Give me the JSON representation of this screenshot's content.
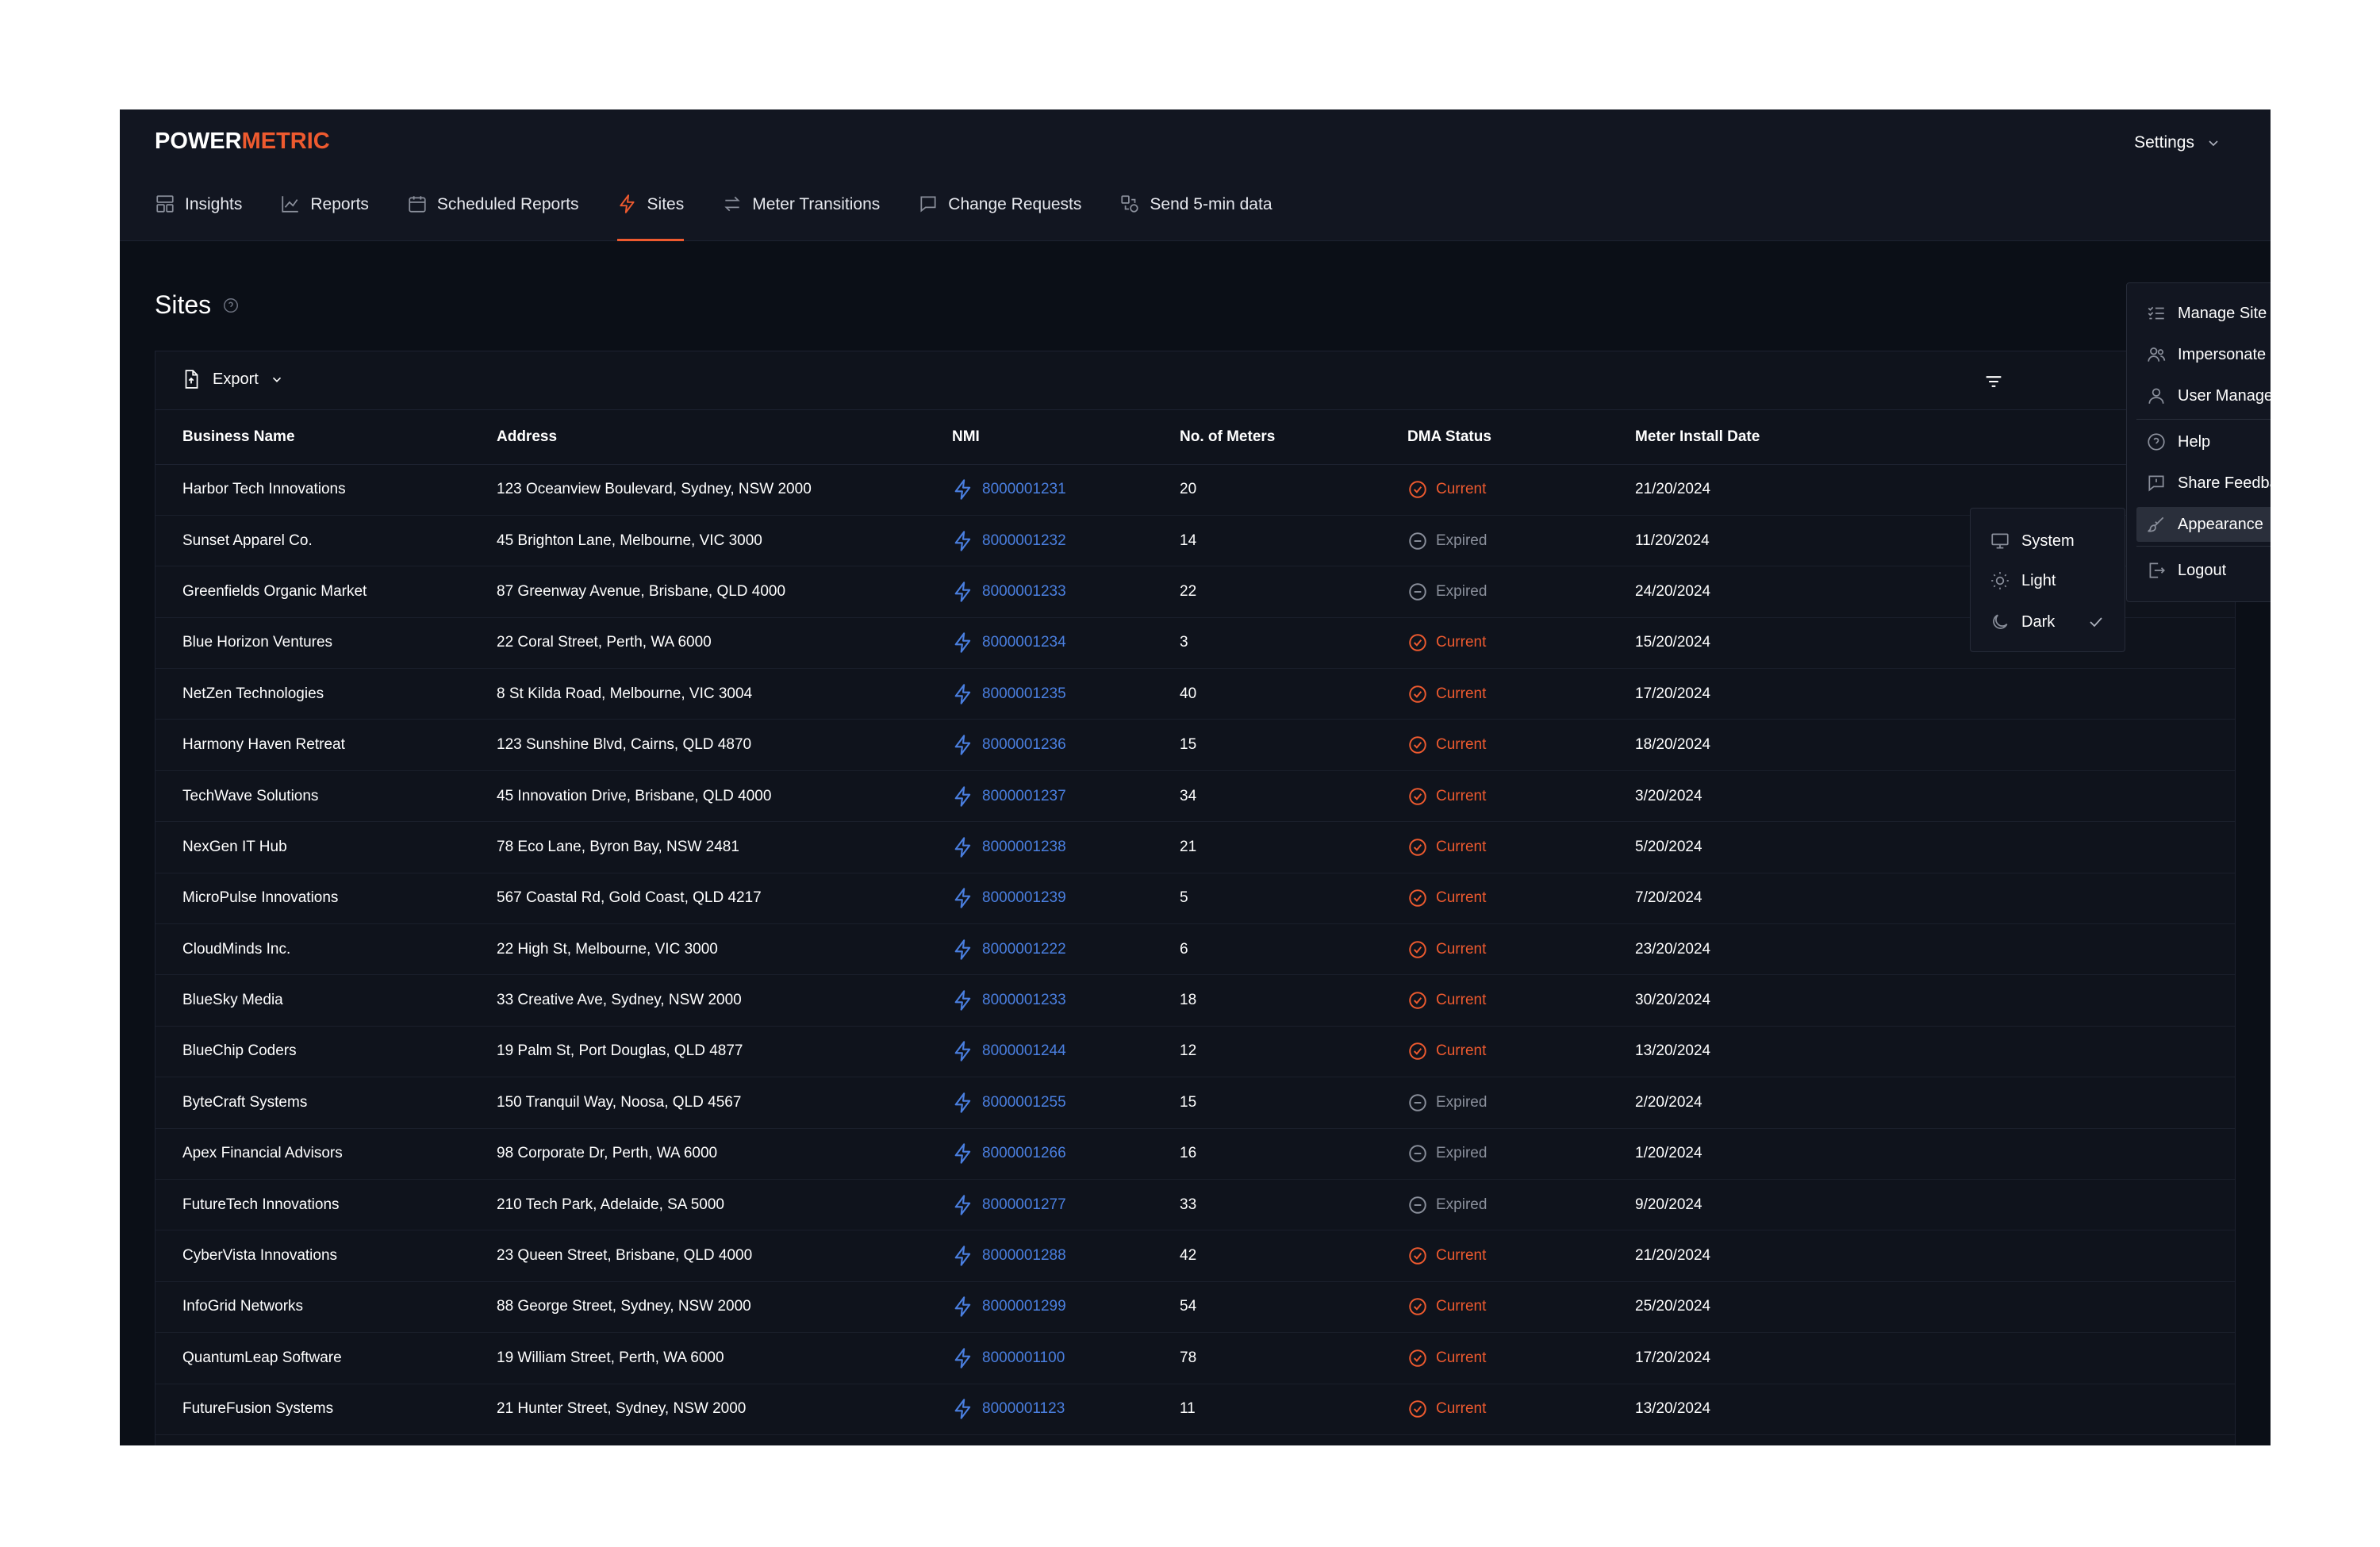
{
  "brand": {
    "part1": "POWER",
    "part2": "METRIC"
  },
  "settings": {
    "label": "Settings"
  },
  "nav": {
    "items": [
      {
        "label": "Insights",
        "icon": "layout-icon"
      },
      {
        "label": "Reports",
        "icon": "chart-line-icon"
      },
      {
        "label": "Scheduled Reports",
        "icon": "calendar-icon"
      },
      {
        "label": "Sites",
        "icon": "bolt-icon",
        "active": true
      },
      {
        "label": "Meter Transitions",
        "icon": "arrows-swap-icon"
      },
      {
        "label": "Change Requests",
        "icon": "message-icon"
      },
      {
        "label": "Send 5-min data",
        "icon": "shapes-icon"
      }
    ]
  },
  "page": {
    "title": "Sites"
  },
  "toolbar": {
    "export_label": "Export"
  },
  "table": {
    "columns": [
      "Business Name",
      "Address",
      "NMI",
      "No. of Meters",
      "DMA Status",
      "Meter Install Date"
    ],
    "rows": [
      {
        "name": "Harbor Tech Innovations",
        "address": "123 Oceanview Boulevard, Sydney, NSW 2000",
        "nmi": "8000001231",
        "meters": "20",
        "status": "Current",
        "date": "21/20/2024"
      },
      {
        "name": "Sunset Apparel Co.",
        "address": "45 Brighton Lane, Melbourne, VIC 3000",
        "nmi": "8000001232",
        "meters": "14",
        "status": "Expired",
        "date": "11/20/2024"
      },
      {
        "name": "Greenfields Organic Market",
        "address": "87 Greenway Avenue, Brisbane, QLD 4000",
        "nmi": "8000001233",
        "meters": "22",
        "status": "Expired",
        "date": "24/20/2024"
      },
      {
        "name": "Blue Horizon Ventures",
        "address": "22 Coral Street, Perth, WA 6000",
        "nmi": "8000001234",
        "meters": "3",
        "status": "Current",
        "date": "15/20/2024"
      },
      {
        "name": "NetZen Technologies",
        "address": "8 St Kilda Road, Melbourne, VIC 3004",
        "nmi": "8000001235",
        "meters": "40",
        "status": "Current",
        "date": "17/20/2024"
      },
      {
        "name": "Harmony Haven Retreat",
        "address": "123 Sunshine Blvd, Cairns, QLD 4870",
        "nmi": "8000001236",
        "meters": "15",
        "status": "Current",
        "date": "18/20/2024"
      },
      {
        "name": "TechWave Solutions",
        "address": "45 Innovation Drive, Brisbane, QLD 4000",
        "nmi": "8000001237",
        "meters": "34",
        "status": "Current",
        "date": "3/20/2024"
      },
      {
        "name": "NexGen IT Hub",
        "address": "78 Eco Lane, Byron Bay, NSW 2481",
        "nmi": "8000001238",
        "meters": "21",
        "status": "Current",
        "date": "5/20/2024"
      },
      {
        "name": "MicroPulse Innovations",
        "address": "567 Coastal Rd, Gold Coast, QLD 4217",
        "nmi": "8000001239",
        "meters": "5",
        "status": "Current",
        "date": "7/20/2024"
      },
      {
        "name": "CloudMinds Inc.",
        "address": "22 High St, Melbourne, VIC 3000",
        "nmi": "8000001222",
        "meters": "6",
        "status": "Current",
        "date": "23/20/2024"
      },
      {
        "name": "BlueSky Media",
        "address": "33 Creative Ave, Sydney, NSW 2000",
        "nmi": "8000001233",
        "meters": "18",
        "status": "Current",
        "date": "30/20/2024"
      },
      {
        "name": "BlueChip Coders",
        "address": "19 Palm St, Port Douglas, QLD 4877",
        "nmi": "8000001244",
        "meters": "12",
        "status": "Current",
        "date": "13/20/2024"
      },
      {
        "name": "ByteCraft Systems",
        "address": "150 Tranquil Way, Noosa, QLD 4567",
        "nmi": "8000001255",
        "meters": "15",
        "status": "Expired",
        "date": "2/20/2024"
      },
      {
        "name": "Apex Financial Advisors",
        "address": "98 Corporate Dr, Perth, WA 6000",
        "nmi": "8000001266",
        "meters": "16",
        "status": "Expired",
        "date": "1/20/2024"
      },
      {
        "name": "FutureTech Innovations",
        "address": "210 Tech Park, Adelaide, SA 5000",
        "nmi": "8000001277",
        "meters": "33",
        "status": "Expired",
        "date": "9/20/2024"
      },
      {
        "name": "CyberVista Innovations",
        "address": "23 Queen Street, Brisbane, QLD 4000",
        "nmi": "8000001288",
        "meters": "42",
        "status": "Current",
        "date": "21/20/2024"
      },
      {
        "name": "InfoGrid Networks",
        "address": "88 George Street, Sydney, NSW 2000",
        "nmi": "8000001299",
        "meters": "54",
        "status": "Current",
        "date": "25/20/2024"
      },
      {
        "name": "QuantumLeap Software",
        "address": "19 William Street, Perth, WA 6000",
        "nmi": "8000001100",
        "meters": "78",
        "status": "Current",
        "date": "17/20/2024"
      },
      {
        "name": "FutureFusion Systems",
        "address": "21 Hunter Street, Sydney, NSW 2000",
        "nmi": "8000001123",
        "meters": "11",
        "status": "Current",
        "date": "13/20/2024"
      }
    ]
  },
  "settings_menu": {
    "items": [
      {
        "label": "Manage Site Lists",
        "icon": "list-check-icon"
      },
      {
        "label": "Impersonate User",
        "icon": "users-icon"
      },
      {
        "label": "User Management",
        "icon": "user-icon"
      },
      {
        "label": "Help",
        "icon": "help-circle-icon"
      },
      {
        "label": "Share Feedback",
        "icon": "feedback-icon"
      },
      {
        "label": "Appearance",
        "icon": "brush-icon",
        "highlighted": true
      },
      {
        "label": "Logout",
        "icon": "logout-icon"
      }
    ]
  },
  "appearance_menu": {
    "items": [
      {
        "label": "System",
        "icon": "monitor-icon"
      },
      {
        "label": "Light",
        "icon": "sun-icon"
      },
      {
        "label": "Dark",
        "icon": "moon-icon",
        "selected": true
      }
    ]
  },
  "colors": {
    "accent": "#ee5a2f",
    "link": "#4a7fe0",
    "background": "#0b0f17",
    "expired": "#8a8f9b"
  }
}
